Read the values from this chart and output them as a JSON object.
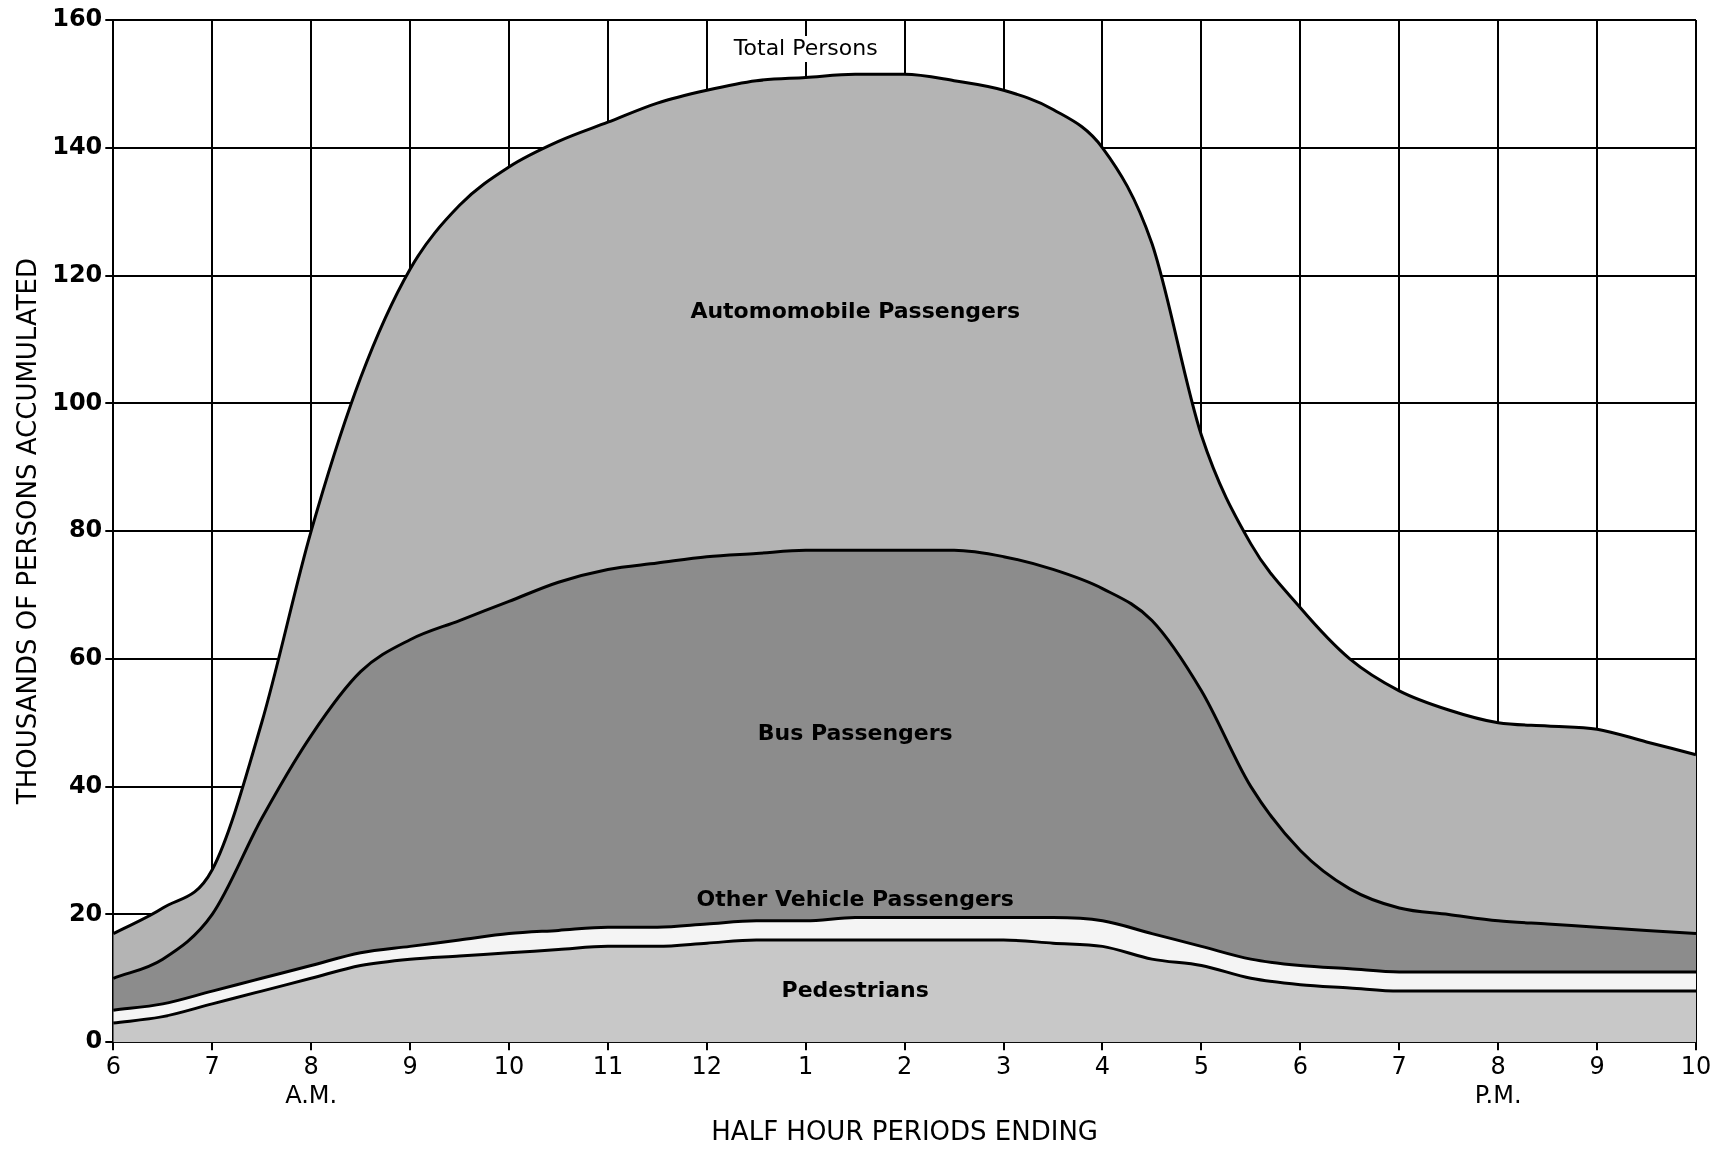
{
  "chart_data": {
    "type": "area",
    "stacked": true,
    "xlabel": "HALF HOUR PERIODS ENDING",
    "ylabel": "THOUSANDS OF PERSONS ACCUMULATED",
    "categories": [
      "6",
      null,
      "7",
      null,
      "8\nA.M.",
      null,
      "9",
      null,
      "10",
      null,
      "11",
      null,
      "12",
      null,
      "1",
      null,
      "2",
      null,
      "3",
      null,
      "4",
      null,
      "5",
      null,
      "6",
      null,
      "7",
      null,
      "8\nP.M.",
      null,
      "9",
      null,
      "10"
    ],
    "series": [
      {
        "name": "Pedestrians",
        "color": "#c8c8c8",
        "values": [
          3,
          4,
          6,
          8,
          10,
          12,
          13,
          13.5,
          14,
          14.5,
          15,
          15,
          15.5,
          16,
          16,
          16,
          16,
          16,
          16,
          15.5,
          15,
          13,
          12,
          10,
          9,
          8.5,
          8,
          8,
          8,
          8,
          8,
          8,
          8
        ]
      },
      {
        "name": "Other Vehicle Passengers",
        "color": "#f4f4f4",
        "values": [
          2,
          2,
          2,
          2,
          2,
          2,
          2,
          2.5,
          3,
          3,
          3,
          3,
          3,
          3,
          3,
          3.5,
          3.5,
          3.5,
          3.5,
          4,
          4,
          4,
          3,
          3,
          3,
          3,
          3,
          3,
          3,
          3,
          3,
          3,
          3
        ]
      },
      {
        "name": "Bus Passengers",
        "color": "#8c8c8c",
        "values": [
          5,
          7,
          12,
          25,
          36,
          44,
          48,
          50,
          52,
          54.5,
          56,
          57,
          57.5,
          57.5,
          58,
          57.5,
          57.5,
          57.5,
          56.5,
          54.5,
          52,
          49,
          40,
          27,
          18,
          12.5,
          10,
          9,
          8,
          7.5,
          7,
          6.5,
          6
        ]
      },
      {
        "name": "Automomobile Passengers",
        "color": "#b4b4b4",
        "values": [
          7,
          8,
          7,
          15,
          32,
          46,
          58,
          65,
          68,
          69,
          70,
          72,
          73,
          74,
          74,
          74.5,
          74.5,
          73.5,
          73,
          72,
          69,
          59,
          40,
          38,
          38,
          36,
          34,
          32,
          31,
          31,
          31,
          29.5,
          28
        ]
      }
    ],
    "annotations": [
      {
        "text": "Total Persons",
        "x": "1",
        "y": 152
      }
    ],
    "ylim": [
      0,
      160
    ],
    "yticks": [
      0,
      20,
      40,
      60,
      80,
      100,
      120,
      140,
      160
    ],
    "grid": true,
    "legend": false,
    "marker": "none",
    "line_style": "solid"
  }
}
